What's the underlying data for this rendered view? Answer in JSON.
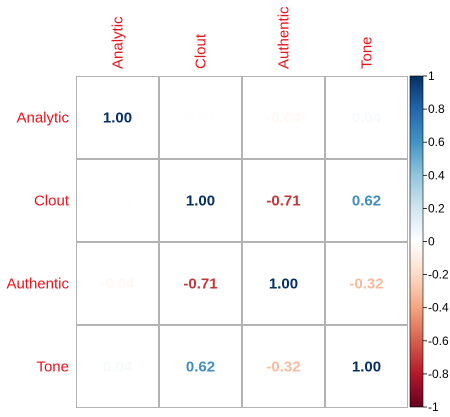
{
  "chart_data": {
    "type": "heatmap",
    "title": "",
    "variables": [
      "Analytic",
      "Clout",
      "Authentic",
      "Tone"
    ],
    "matrix": [
      [
        1.0,
        0.01,
        -0.04,
        0.04
      ],
      [
        0.01,
        1.0,
        -0.71,
        0.62
      ],
      [
        -0.04,
        -0.71,
        1.0,
        -0.32
      ],
      [
        0.04,
        0.62,
        -0.32,
        1.0
      ]
    ],
    "value_labels": [
      [
        "1.00",
        "0.01",
        "-0.04",
        "0.04"
      ],
      [
        "0.01",
        "1.00",
        "-0.71",
        "0.62"
      ],
      [
        "-0.04",
        "-0.71",
        "1.00",
        "-0.32"
      ],
      [
        "0.04",
        "0.62",
        "-0.32",
        "1.00"
      ]
    ],
    "colorbar": {
      "range": [
        -1,
        1
      ],
      "ticks": [
        "1",
        "0.8",
        "0.6",
        "0.4",
        "0.2",
        "0",
        "-0.2",
        "-0.4",
        "-0.6",
        "-0.8",
        "-1"
      ],
      "tick_values": [
        1,
        0.8,
        0.6,
        0.4,
        0.2,
        0,
        -0.2,
        -0.4,
        -0.6,
        -0.8,
        -1
      ],
      "palette": [
        "#67001F",
        "#B2182B",
        "#D6604D",
        "#F4A582",
        "#FDDBC7",
        "#FFFFFF",
        "#D1E5F0",
        "#92C5DE",
        "#4393C3",
        "#2166AC",
        "#053061"
      ]
    },
    "label_color": "#E8141C",
    "grid": true,
    "legend": "right"
  }
}
